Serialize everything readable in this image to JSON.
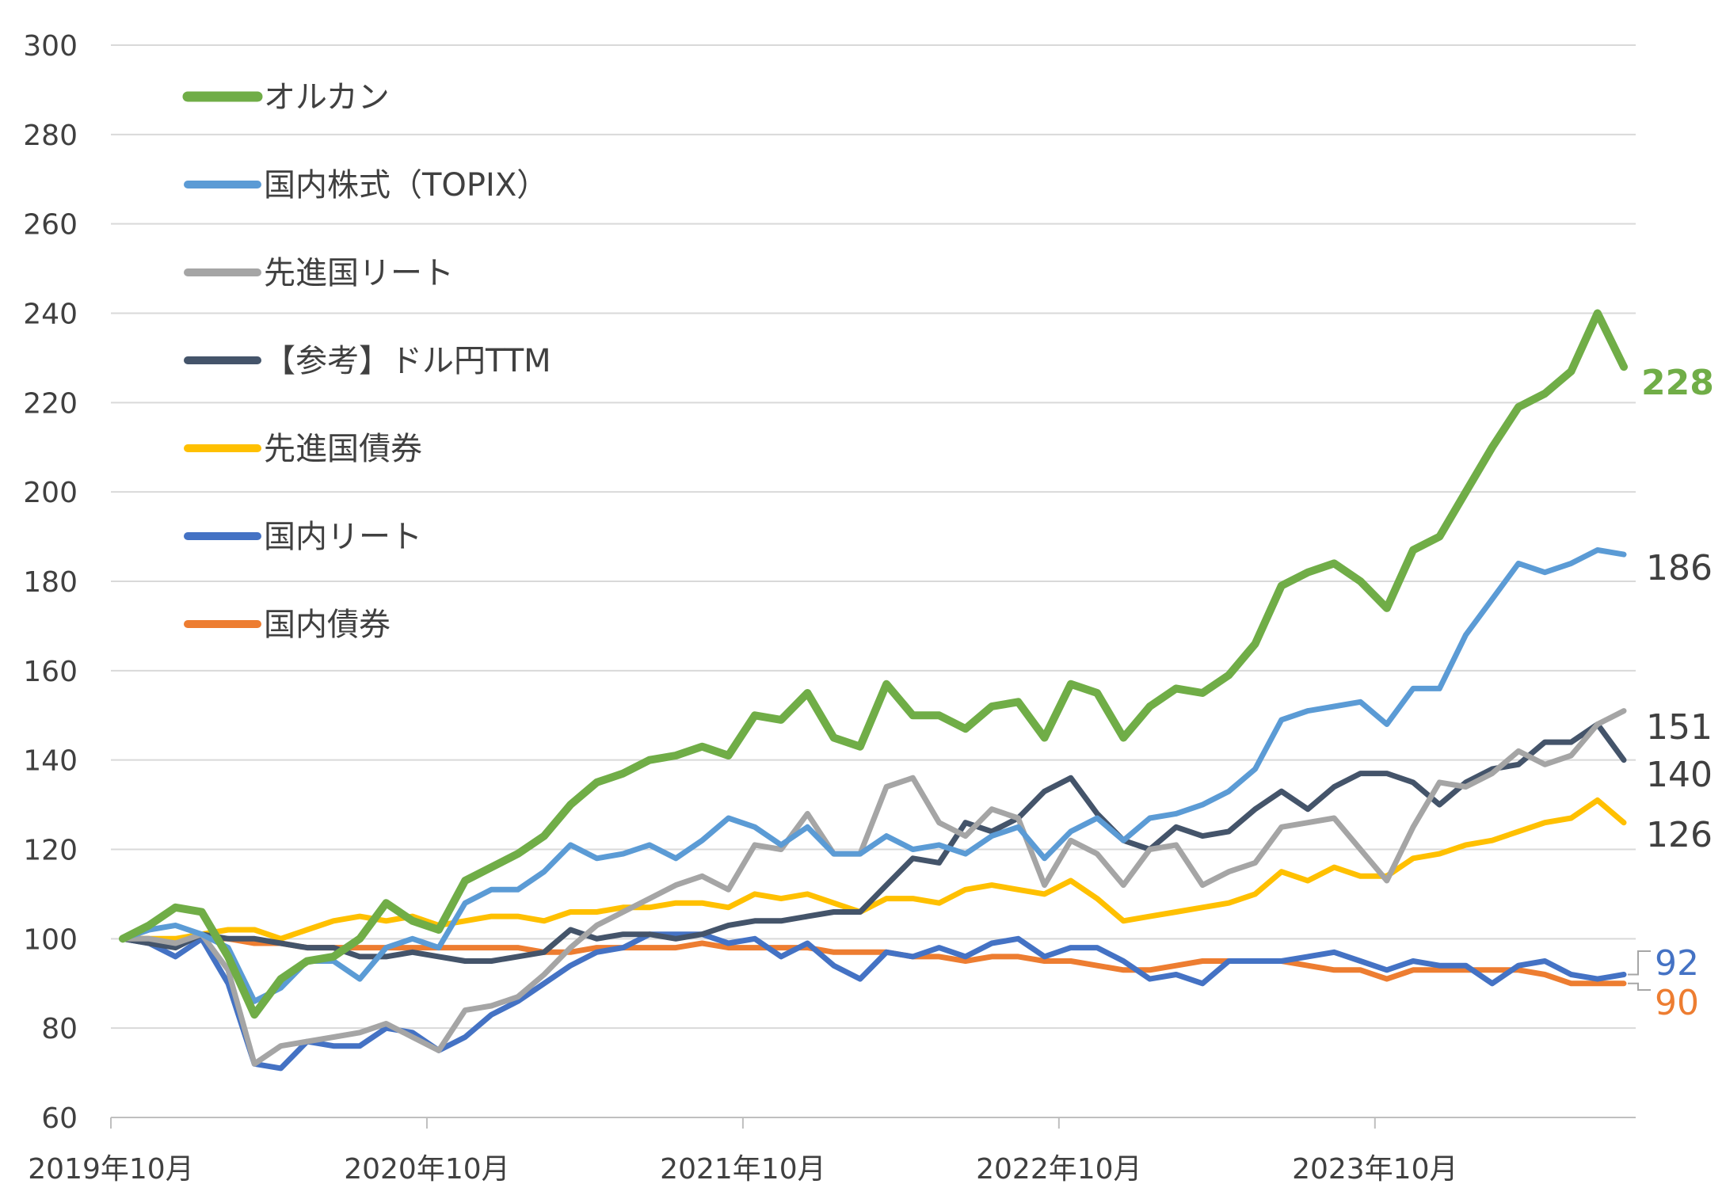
{
  "chart_data": {
    "type": "line",
    "title": "",
    "xlabel": "",
    "ylabel": "",
    "ylim": [
      60,
      300
    ],
    "yticks": [
      60,
      80,
      100,
      120,
      140,
      160,
      180,
      200,
      220,
      240,
      260,
      280,
      300
    ],
    "x_tick_labels": [
      "2019年10月",
      "2020年10月",
      "2021年10月",
      "2022年10月",
      "2023年10月"
    ],
    "grid": "horizontal",
    "legend_position": "top-left",
    "end_labels": [
      {
        "series": "オルカン",
        "text": "228",
        "value": 228,
        "color": "#70ad47",
        "bold": true
      },
      {
        "series": "国内株式（TOPIX）",
        "text": "186",
        "value": 186,
        "color": "#404040",
        "bold": false
      },
      {
        "series": "先進国リート",
        "text": "151",
        "value": 151,
        "color": "#404040",
        "bold": false
      },
      {
        "series": "【参考】ドル円TTM",
        "text": "140",
        "value": 140,
        "color": "#404040",
        "bold": false
      },
      {
        "series": "先進国債券",
        "text": "126",
        "value": 126,
        "color": "#404040",
        "bold": false
      },
      {
        "series": "国内リート",
        "text": "92",
        "value": 92,
        "color": "#4472c4",
        "bold": false
      },
      {
        "series": "国内債券",
        "text": "90",
        "value": 90,
        "color": "#ed7d31",
        "bold": false
      }
    ],
    "series": [
      {
        "name": "オルカン",
        "color": "#70ad47",
        "width": 10,
        "values": [
          100,
          103,
          107,
          106,
          96,
          83,
          91,
          95,
          96,
          100,
          108,
          104,
          102,
          113,
          116,
          119,
          123,
          130,
          135,
          137,
          140,
          141,
          143,
          141,
          150,
          149,
          155,
          145,
          143,
          157,
          150,
          150,
          147,
          152,
          153,
          145,
          157,
          155,
          145,
          152,
          156,
          155,
          159,
          166,
          179,
          182,
          184,
          180,
          174,
          187,
          190,
          200,
          210,
          219,
          222,
          227,
          240,
          228
        ]
      },
      {
        "name": "国内株式（TOPIX）",
        "color": "#5b9bd5",
        "width": 7,
        "values": [
          100,
          102,
          103,
          101,
          98,
          86,
          89,
          95,
          95,
          91,
          98,
          100,
          98,
          108,
          111,
          111,
          115,
          121,
          118,
          119,
          121,
          118,
          122,
          127,
          125,
          121,
          125,
          119,
          119,
          123,
          120,
          121,
          119,
          123,
          125,
          118,
          124,
          127,
          122,
          127,
          128,
          130,
          133,
          138,
          149,
          151,
          152,
          153,
          148,
          156,
          156,
          168,
          176,
          184,
          182,
          184,
          187,
          186
        ]
      },
      {
        "name": "先進国リート",
        "color": "#a5a5a5",
        "width": 7,
        "values": [
          100,
          100,
          99,
          101,
          93,
          72,
          76,
          77,
          78,
          79,
          81,
          78,
          75,
          84,
          85,
          87,
          92,
          98,
          103,
          106,
          109,
          112,
          114,
          111,
          121,
          120,
          128,
          119,
          119,
          134,
          136,
          126,
          123,
          129,
          127,
          112,
          122,
          119,
          112,
          120,
          121,
          112,
          115,
          117,
          125,
          126,
          127,
          120,
          113,
          125,
          135,
          134,
          137,
          142,
          139,
          141,
          148,
          151
        ]
      },
      {
        "name": "【参考】ドル円TTM",
        "color": "#44546a",
        "width": 7,
        "values": [
          100,
          99,
          98,
          101,
          100,
          100,
          99,
          98,
          98,
          96,
          96,
          97,
          96,
          95,
          95,
          96,
          97,
          102,
          100,
          101,
          101,
          100,
          101,
          103,
          104,
          104,
          105,
          106,
          106,
          112,
          118,
          117,
          126,
          124,
          127,
          133,
          136,
          128,
          122,
          120,
          125,
          123,
          124,
          129,
          133,
          129,
          134,
          137,
          137,
          135,
          130,
          135,
          138,
          139,
          144,
          144,
          148,
          140
        ]
      },
      {
        "name": "先進国債券",
        "color": "#ffc000",
        "width": 7,
        "values": [
          100,
          100,
          100,
          101,
          102,
          102,
          100,
          102,
          104,
          105,
          104,
          105,
          103,
          104,
          105,
          105,
          104,
          106,
          106,
          107,
          107,
          108,
          108,
          107,
          110,
          109,
          110,
          108,
          106,
          109,
          109,
          108,
          111,
          112,
          111,
          110,
          113,
          109,
          104,
          105,
          106,
          107,
          108,
          110,
          115,
          113,
          116,
          114,
          114,
          118,
          119,
          121,
          122,
          124,
          126,
          127,
          131,
          126
        ]
      },
      {
        "name": "国内リート",
        "color": "#4472c4",
        "width": 7,
        "values": [
          100,
          99,
          96,
          100,
          90,
          72,
          71,
          77,
          76,
          76,
          80,
          79,
          75,
          78,
          83,
          86,
          90,
          94,
          97,
          98,
          101,
          101,
          101,
          99,
          100,
          96,
          99,
          94,
          91,
          97,
          96,
          98,
          96,
          99,
          100,
          96,
          98,
          98,
          95,
          91,
          92,
          90,
          95,
          95,
          95,
          96,
          97,
          95,
          93,
          95,
          94,
          94,
          90,
          94,
          95,
          92,
          91,
          92
        ]
      },
      {
        "name": "国内債券",
        "color": "#ed7d31",
        "width": 7,
        "values": [
          100,
          100,
          99,
          100,
          100,
          99,
          99,
          98,
          98,
          98,
          98,
          98,
          98,
          98,
          98,
          98,
          97,
          97,
          98,
          98,
          98,
          98,
          99,
          98,
          98,
          98,
          98,
          97,
          97,
          97,
          96,
          96,
          95,
          96,
          96,
          95,
          95,
          94,
          93,
          93,
          94,
          95,
          95,
          95,
          95,
          94,
          93,
          93,
          91,
          93,
          93,
          93,
          93,
          93,
          92,
          90,
          90,
          90
        ]
      }
    ]
  }
}
